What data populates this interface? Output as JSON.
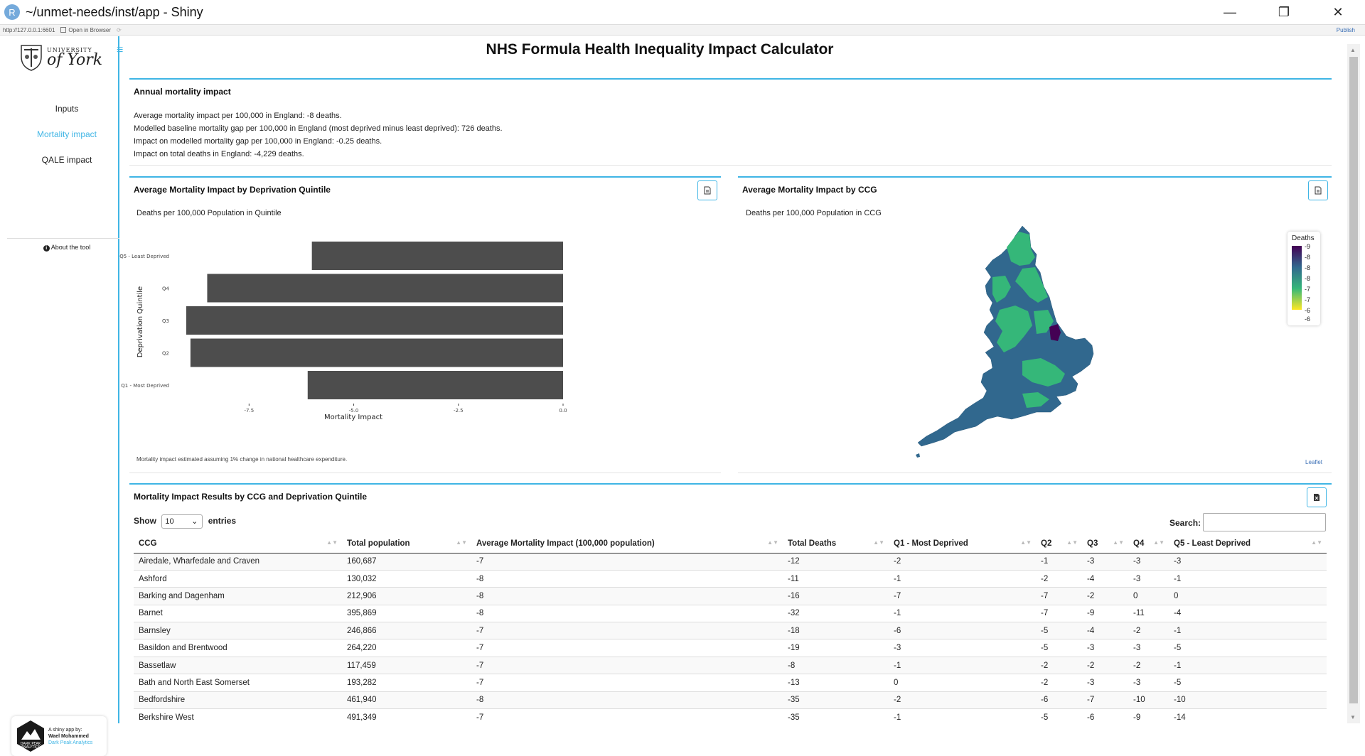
{
  "window": {
    "title": "~/unmet-needs/inst/app - Shiny",
    "r_letter": "R",
    "minimize": "—",
    "restore": "❐",
    "close": "✕"
  },
  "viewer": {
    "url": "http://127.0.0.1:6601",
    "open_in_browser": "Open in Browser",
    "publish": "Publish"
  },
  "brand": {
    "small": "UNIVERSITY",
    "big": "of York"
  },
  "menu_icon": "≡",
  "nav": {
    "items": [
      {
        "label": "Inputs"
      },
      {
        "label": "Mortality impact"
      },
      {
        "label": "QALE impact"
      }
    ],
    "about": "About the tool",
    "about_icon": "i"
  },
  "credit": {
    "line1": "A shiny app by:",
    "line2": "Wael Mohammed",
    "line3": "Dark Peak Analytics",
    "hex_text1": "DARK PEAK",
    "hex_text2": "ANALYTICS"
  },
  "page_title": "NHS Formula Health Inequality Impact Calculator",
  "annual": {
    "title": "Annual mortality impact",
    "lines": [
      "Average mortality impact per 100,000 in England: -8 deaths.",
      "Modelled baseline mortality gap per 100,000 in England (most deprived minus least deprived): 726 deaths.",
      "Impact on modelled mortality gap per 100,000 in England: -0.25 deaths.",
      "Impact on total deaths in England: -4,229 deaths."
    ]
  },
  "quintile_chart": {
    "title": "Average Mortality Impact by Deprivation Quintile",
    "subtitle": "Deaths per 100,000 Population in Quintile",
    "note": "Mortality impact estimated assuming 1% change in national healthcare expenditure.",
    "bar_color": "#4d4d4d"
  },
  "chart_data": {
    "type": "bar",
    "orientation": "horizontal",
    "categories": [
      "Q5 - Least Deprived",
      "Q4",
      "Q3",
      "Q2",
      "Q1 - Most Deprived"
    ],
    "values": [
      -6.0,
      -8.5,
      -9.0,
      -8.9,
      -6.1
    ],
    "xlabel": "Mortality Impact",
    "ylabel": "Deprivation Quintile",
    "xlim": [
      -9.0,
      0.0
    ],
    "xticks": [
      -7.5,
      -5.0,
      -2.5,
      0.0
    ],
    "xtick_labels": [
      "-7.5",
      "-5.0",
      "-2.5",
      "0.0"
    ]
  },
  "ccg_map": {
    "title": "Average Mortality Impact by CCG",
    "subtitle": "Deaths per 100,000 Population in CCG",
    "legend_title": "Deaths",
    "legend_labels": [
      "-9",
      "-8",
      "-8",
      "-8",
      "-7",
      "-7",
      "-6",
      "-6"
    ],
    "attribution": "Leaflet",
    "colors": {
      "high": "#440154",
      "mid": "#31688e",
      "low": "#35b779",
      "min": "#fde725"
    }
  },
  "results": {
    "title": "Mortality Impact Results by CCG and Deprivation Quintile",
    "show_label": "Show",
    "entries_label": "entries",
    "page_size": "10",
    "search_label": "Search:",
    "columns": [
      "CCG",
      "Total population",
      "Average Mortality Impact (100,000 population)",
      "Total Deaths",
      "Q1 - Most Deprived",
      "Q2",
      "Q3",
      "Q4",
      "Q5 - Least Deprived"
    ],
    "rows": [
      [
        "Airedale, Wharfedale and Craven",
        "160,687",
        "-7",
        "-12",
        "-2",
        "-1",
        "-3",
        "-3",
        "-3"
      ],
      [
        "Ashford",
        "130,032",
        "-8",
        "-11",
        "-1",
        "-2",
        "-4",
        "-3",
        "-1"
      ],
      [
        "Barking and Dagenham",
        "212,906",
        "-8",
        "-16",
        "-7",
        "-7",
        "-2",
        "0",
        "0"
      ],
      [
        "Barnet",
        "395,869",
        "-8",
        "-32",
        "-1",
        "-7",
        "-9",
        "-11",
        "-4"
      ],
      [
        "Barnsley",
        "246,866",
        "-7",
        "-18",
        "-6",
        "-5",
        "-4",
        "-2",
        "-1"
      ],
      [
        "Basildon and Brentwood",
        "264,220",
        "-7",
        "-19",
        "-3",
        "-5",
        "-3",
        "-3",
        "-5"
      ],
      [
        "Bassetlaw",
        "117,459",
        "-7",
        "-8",
        "-1",
        "-2",
        "-2",
        "-2",
        "-1"
      ],
      [
        "Bath and North East Somerset",
        "193,282",
        "-7",
        "-13",
        "0",
        "-2",
        "-3",
        "-3",
        "-5"
      ],
      [
        "Bedfordshire",
        "461,940",
        "-8",
        "-35",
        "-2",
        "-6",
        "-7",
        "-10",
        "-10"
      ],
      [
        "Berkshire West",
        "491,349",
        "-7",
        "-35",
        "-1",
        "-5",
        "-6",
        "-9",
        "-14"
      ]
    ]
  }
}
